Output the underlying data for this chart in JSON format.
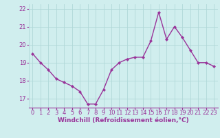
{
  "x": [
    0,
    1,
    2,
    3,
    4,
    5,
    6,
    7,
    8,
    9,
    10,
    11,
    12,
    13,
    14,
    15,
    16,
    17,
    18,
    19,
    20,
    21,
    22,
    23
  ],
  "y": [
    19.5,
    19.0,
    18.6,
    18.1,
    17.9,
    17.7,
    17.4,
    16.7,
    16.7,
    17.5,
    18.6,
    19.0,
    19.2,
    19.3,
    19.3,
    20.2,
    21.8,
    20.3,
    21.0,
    20.4,
    19.7,
    19.0,
    19.0,
    18.8
  ],
  "line_color": "#993399",
  "marker": "D",
  "marker_size": 2.2,
  "linewidth": 1.0,
  "xlabel": "Windchill (Refroidissement éolien,°C)",
  "xlabel_fontsize": 6.5,
  "xtick_labels": [
    "0",
    "1",
    "2",
    "3",
    "4",
    "5",
    "6",
    "7",
    "8",
    "9",
    "10",
    "11",
    "12",
    "13",
    "14",
    "15",
    "16",
    "17",
    "18",
    "19",
    "20",
    "21",
    "22",
    "23"
  ],
  "ylim": [
    16.5,
    22.25
  ],
  "yticks": [
    17,
    18,
    19,
    20,
    21,
    22
  ],
  "ytick_labels": [
    "17",
    "18",
    "19",
    "20",
    "21",
    "22"
  ],
  "grid_color": "#b0d8d8",
  "background_color": "#d0eeee",
  "tick_fontsize": 6.0,
  "tick_color": "#993399",
  "label_color": "#993399"
}
